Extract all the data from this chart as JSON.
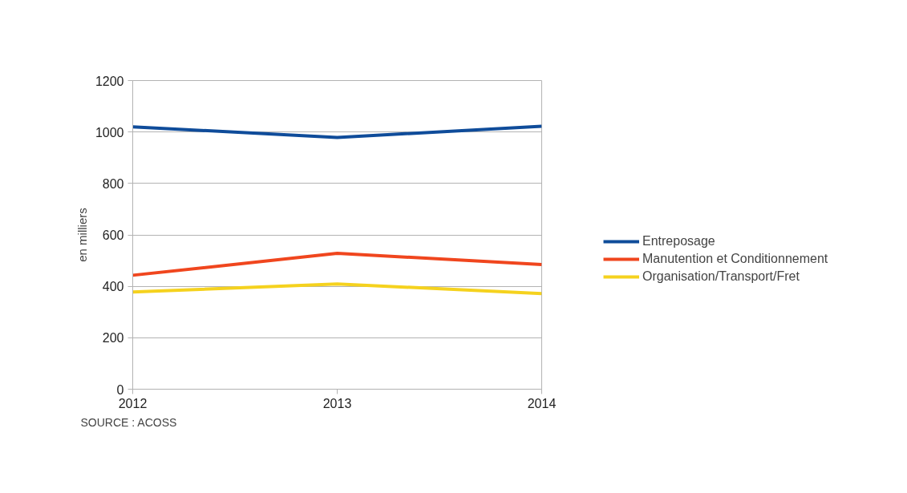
{
  "chart_data": {
    "type": "line",
    "x": [
      2012,
      2013,
      2014
    ],
    "xlim": [
      2012,
      2014
    ],
    "xticks": [
      2012,
      2013,
      2014
    ],
    "ylim": [
      0,
      1200
    ],
    "yticks": [
      0,
      200,
      400,
      600,
      800,
      1000,
      1200
    ],
    "ylabel": "en milliers",
    "grid": "y",
    "legend": "right",
    "marker": "none",
    "line_style": "solid",
    "series": [
      {
        "name": "Entreposage",
        "color": "#0f4c9a",
        "values": [
          1020,
          979,
          1022
        ]
      },
      {
        "name": "Manutention et Conditionnement",
        "color": "#f0461e",
        "values": [
          443,
          528,
          485
        ]
      },
      {
        "name": "Organisation/Transport/Fret",
        "color": "#f5d21e",
        "values": [
          378,
          409,
          372
        ]
      }
    ],
    "annotations": [
      "SOURCE : ACOSS"
    ]
  }
}
